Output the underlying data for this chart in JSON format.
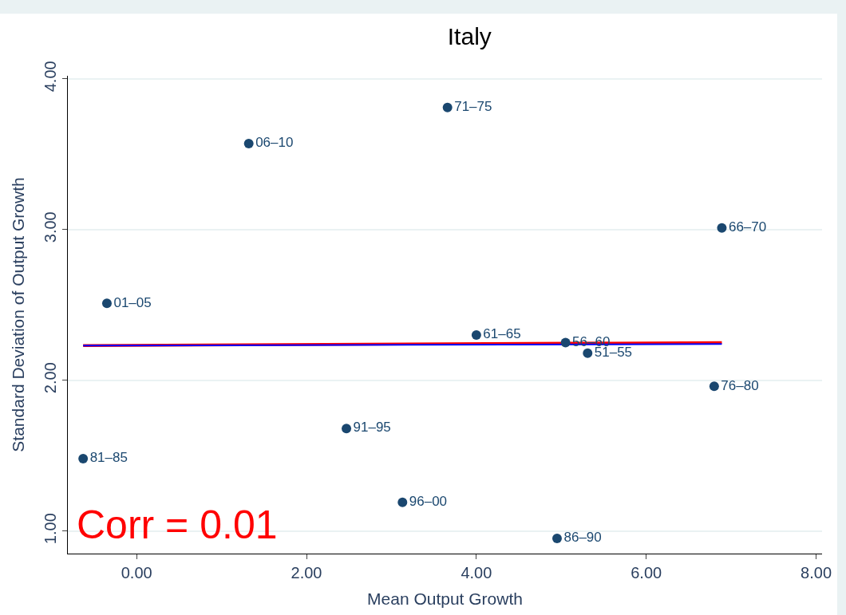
{
  "chart_data": {
    "type": "scatter",
    "title": "Italy",
    "xlabel": "Mean Output Growth",
    "ylabel": "Standard Deviation of Output Growth",
    "series": [
      {
        "marker": "circle",
        "color": "#1a476f",
        "x": [
          1.32,
          3.66,
          6.89,
          -0.35,
          4.0,
          5.05,
          5.31,
          6.8,
          2.47,
          -0.63,
          3.13,
          4.95
        ],
        "values": [
          3.57,
          3.81,
          3.01,
          2.51,
          2.3,
          2.25,
          2.18,
          1.96,
          1.68,
          1.48,
          1.19,
          0.95
        ],
        "value_labels": [
          "06‒10",
          "71‒75",
          "66‒70",
          "01‒05",
          "61‒65",
          "56‒60",
          "51‒55",
          "76‒80",
          "91‒95",
          "81‒85",
          "96‒00",
          "86‒90"
        ]
      },
      {
        "type": "line",
        "color": "#ff0000",
        "x": [
          -0.63,
          6.89
        ],
        "values": [
          2.23,
          2.25
        ]
      },
      {
        "type": "line",
        "color": "#0000ff",
        "x": [
          -0.63,
          6.89
        ],
        "values": [
          2.23,
          2.24
        ]
      }
    ],
    "xlim": [
      -0.81,
      8.07
    ],
    "ylim": [
      0.85,
      4.02
    ],
    "xticks": [
      {
        "value": 0,
        "label": "0.00"
      },
      {
        "value": 2,
        "label": "2.00"
      },
      {
        "value": 4,
        "label": "4.00"
      },
      {
        "value": 6,
        "label": "6.00"
      },
      {
        "value": 8,
        "label": "8.00"
      }
    ],
    "yticks": [
      {
        "value": 1,
        "label": "1.00"
      },
      {
        "value": 2,
        "label": "2.00"
      },
      {
        "value": 3,
        "label": "3.00"
      },
      {
        "value": 4,
        "label": "4.00"
      }
    ],
    "grid": "y",
    "annotations": [
      "Corr = 0.01"
    ]
  }
}
